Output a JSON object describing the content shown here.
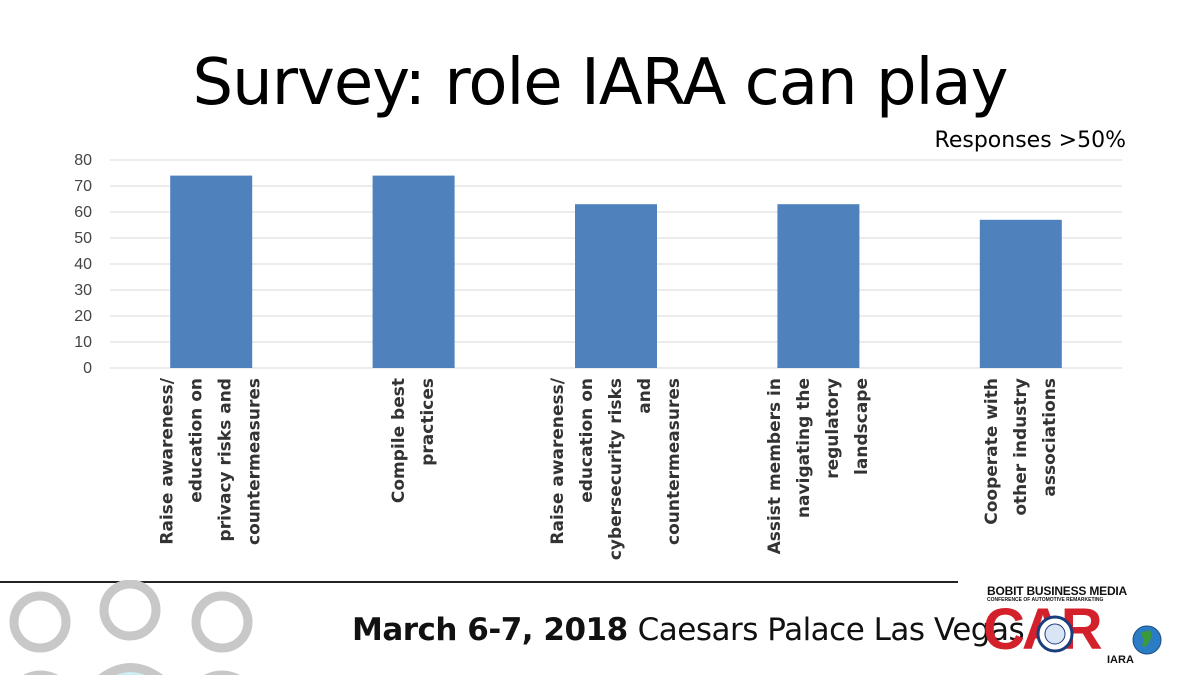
{
  "slide": {
    "title": "Survey: role IARA can play",
    "subtitle": "Responses >50%"
  },
  "chart_data": {
    "type": "bar",
    "categories": [
      "Raise awareness/ education on privacy risks and countermeasures",
      "Compile best practices",
      "Raise awareness/ education on cybersecurity risks and countermeasures",
      "Assist members in navigating the regulatory landscape",
      "Cooperate with other industry associations"
    ],
    "category_lines": [
      [
        "Raise awareness/",
        "education on",
        "privacy risks and",
        "countermeasures"
      ],
      [
        "Compile best",
        "practices"
      ],
      [
        "Raise awareness/",
        "education on",
        "cybersecurity risks",
        "and",
        "countermeasures"
      ],
      [
        "Assist members in",
        "navigating the",
        "regulatory",
        "landscape"
      ],
      [
        "Cooperate with",
        "other industry",
        "associations"
      ]
    ],
    "values": [
      74,
      74,
      63,
      63,
      57
    ],
    "ylim": [
      0,
      80
    ],
    "yticks": [
      0,
      10,
      20,
      30,
      40,
      50,
      60,
      70,
      80
    ],
    "grid": true,
    "bar_color": "#4f81bd",
    "grid_color": "#d9d9d9"
  },
  "footer": {
    "date": "March 6-7, 2018",
    "venue": "Caesars Palace Las Vegas"
  },
  "logo": {
    "line1": "BOBIT BUSINESS MEDIA",
    "line2": "CONFERENCE OF AUTOMOTIVE REMARKETING",
    "mark": "CAR",
    "partner": "IARA"
  },
  "colors": {
    "accent_red": "#d3202a",
    "people_outline": "#c8c8c8",
    "people_fill": "#cdeef3"
  }
}
